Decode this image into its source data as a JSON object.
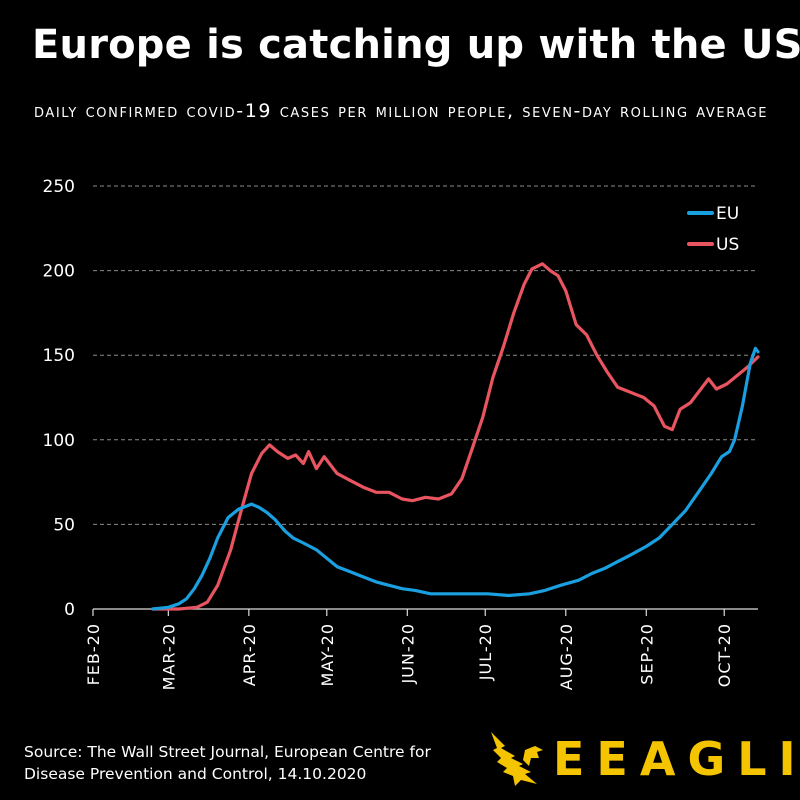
{
  "title": "Europe is catching up with the US",
  "subtitle": "Daily confirmed COVID-19 cases per million people, seven-day rolling average",
  "source": "Source: The Wall Street Journal, European Centre for Disease Prevention and Control, 14.10.2020",
  "brand": {
    "name": "EEAGLI",
    "color": "#f5c400",
    "icon": "eagle-icon"
  },
  "chart_data": {
    "type": "line",
    "title": "Europe is catching up with the US",
    "subtitle": "Daily confirmed COVID-19 cases per million people, seven-day rolling average",
    "xlabel": "",
    "ylabel": "",
    "x_axis": {
      "start": "2020-02-01",
      "end": "2020-10-14",
      "tick_labels": [
        "FEB-20",
        "MAR-20",
        "APR-20",
        "MAY-20",
        "JUN-20",
        "JUL-20",
        "AUG-20",
        "SEP-20",
        "OCT-20"
      ],
      "tick_dates": [
        "2020-02-01",
        "2020-03-01",
        "2020-04-01",
        "2020-05-01",
        "2020-06-01",
        "2020-07-01",
        "2020-08-01",
        "2020-09-01",
        "2020-10-01"
      ]
    },
    "ylim": [
      0,
      250
    ],
    "yticks": [
      0,
      50,
      100,
      150,
      200,
      250
    ],
    "grid": "horizontal-dashed",
    "legend": "top-right",
    "series": [
      {
        "name": "EU",
        "color": "#1a9fe0",
        "points": [
          [
            "2020-02-24",
            0
          ],
          [
            "2020-03-01",
            1
          ],
          [
            "2020-03-05",
            3
          ],
          [
            "2020-03-08",
            6
          ],
          [
            "2020-03-11",
            12
          ],
          [
            "2020-03-14",
            20
          ],
          [
            "2020-03-17",
            30
          ],
          [
            "2020-03-20",
            42
          ],
          [
            "2020-03-24",
            54
          ],
          [
            "2020-03-28",
            59
          ],
          [
            "2020-04-02",
            62
          ],
          [
            "2020-04-05",
            60
          ],
          [
            "2020-04-08",
            57
          ],
          [
            "2020-04-11",
            53
          ],
          [
            "2020-04-15",
            46
          ],
          [
            "2020-04-18",
            42
          ],
          [
            "2020-04-22",
            39
          ],
          [
            "2020-04-27",
            35
          ],
          [
            "2020-05-01",
            30
          ],
          [
            "2020-05-05",
            25
          ],
          [
            "2020-05-10",
            22
          ],
          [
            "2020-05-15",
            19
          ],
          [
            "2020-05-20",
            16
          ],
          [
            "2020-05-25",
            14
          ],
          [
            "2020-05-30",
            12
          ],
          [
            "2020-06-04",
            11
          ],
          [
            "2020-06-10",
            9
          ],
          [
            "2020-06-18",
            9
          ],
          [
            "2020-06-25",
            9
          ],
          [
            "2020-07-02",
            9
          ],
          [
            "2020-07-10",
            8
          ],
          [
            "2020-07-18",
            9
          ],
          [
            "2020-07-24",
            11
          ],
          [
            "2020-07-30",
            14
          ],
          [
            "2020-08-06",
            17
          ],
          [
            "2020-08-11",
            21
          ],
          [
            "2020-08-16",
            24
          ],
          [
            "2020-08-21",
            28
          ],
          [
            "2020-08-26",
            32
          ],
          [
            "2020-09-01",
            37
          ],
          [
            "2020-09-06",
            42
          ],
          [
            "2020-09-11",
            50
          ],
          [
            "2020-09-16",
            58
          ],
          [
            "2020-09-21",
            69
          ],
          [
            "2020-09-26",
            80
          ],
          [
            "2020-09-30",
            90
          ],
          [
            "2020-10-03",
            93
          ],
          [
            "2020-10-05",
            100
          ],
          [
            "2020-10-08",
            120
          ],
          [
            "2020-10-11",
            145
          ],
          [
            "2020-10-13",
            154
          ],
          [
            "2020-10-14",
            152
          ]
        ]
      },
      {
        "name": "US",
        "color": "#e8545f",
        "points": [
          [
            "2020-02-24",
            0
          ],
          [
            "2020-03-05",
            0
          ],
          [
            "2020-03-12",
            1
          ],
          [
            "2020-03-16",
            4
          ],
          [
            "2020-03-20",
            14
          ],
          [
            "2020-03-25",
            35
          ],
          [
            "2020-03-29",
            58
          ],
          [
            "2020-04-02",
            80
          ],
          [
            "2020-04-06",
            92
          ],
          [
            "2020-04-09",
            97
          ],
          [
            "2020-04-12",
            93
          ],
          [
            "2020-04-16",
            89
          ],
          [
            "2020-04-19",
            91
          ],
          [
            "2020-04-22",
            86
          ],
          [
            "2020-04-24",
            93
          ],
          [
            "2020-04-27",
            83
          ],
          [
            "2020-04-30",
            90
          ],
          [
            "2020-05-02",
            86
          ],
          [
            "2020-05-05",
            80
          ],
          [
            "2020-05-10",
            76
          ],
          [
            "2020-05-15",
            72
          ],
          [
            "2020-05-20",
            69
          ],
          [
            "2020-05-25",
            69
          ],
          [
            "2020-05-30",
            65
          ],
          [
            "2020-06-03",
            64
          ],
          [
            "2020-06-08",
            66
          ],
          [
            "2020-06-13",
            65
          ],
          [
            "2020-06-18",
            68
          ],
          [
            "2020-06-22",
            77
          ],
          [
            "2020-06-26",
            95
          ],
          [
            "2020-06-30",
            113
          ],
          [
            "2020-07-04",
            137
          ],
          [
            "2020-07-08",
            155
          ],
          [
            "2020-07-12",
            175
          ],
          [
            "2020-07-16",
            192
          ],
          [
            "2020-07-19",
            201
          ],
          [
            "2020-07-23",
            204
          ],
          [
            "2020-07-26",
            200
          ],
          [
            "2020-07-29",
            197
          ],
          [
            "2020-08-01",
            188
          ],
          [
            "2020-08-05",
            168
          ],
          [
            "2020-08-09",
            162
          ],
          [
            "2020-08-13",
            150
          ],
          [
            "2020-08-17",
            140
          ],
          [
            "2020-08-21",
            131
          ],
          [
            "2020-08-26",
            128
          ],
          [
            "2020-08-31",
            125
          ],
          [
            "2020-09-04",
            120
          ],
          [
            "2020-09-08",
            108
          ],
          [
            "2020-09-11",
            106
          ],
          [
            "2020-09-14",
            118
          ],
          [
            "2020-09-18",
            122
          ],
          [
            "2020-09-22",
            130
          ],
          [
            "2020-09-25",
            136
          ],
          [
            "2020-09-28",
            130
          ],
          [
            "2020-10-02",
            133
          ],
          [
            "2020-10-06",
            138
          ],
          [
            "2020-10-10",
            143
          ],
          [
            "2020-10-14",
            149
          ]
        ]
      }
    ]
  }
}
